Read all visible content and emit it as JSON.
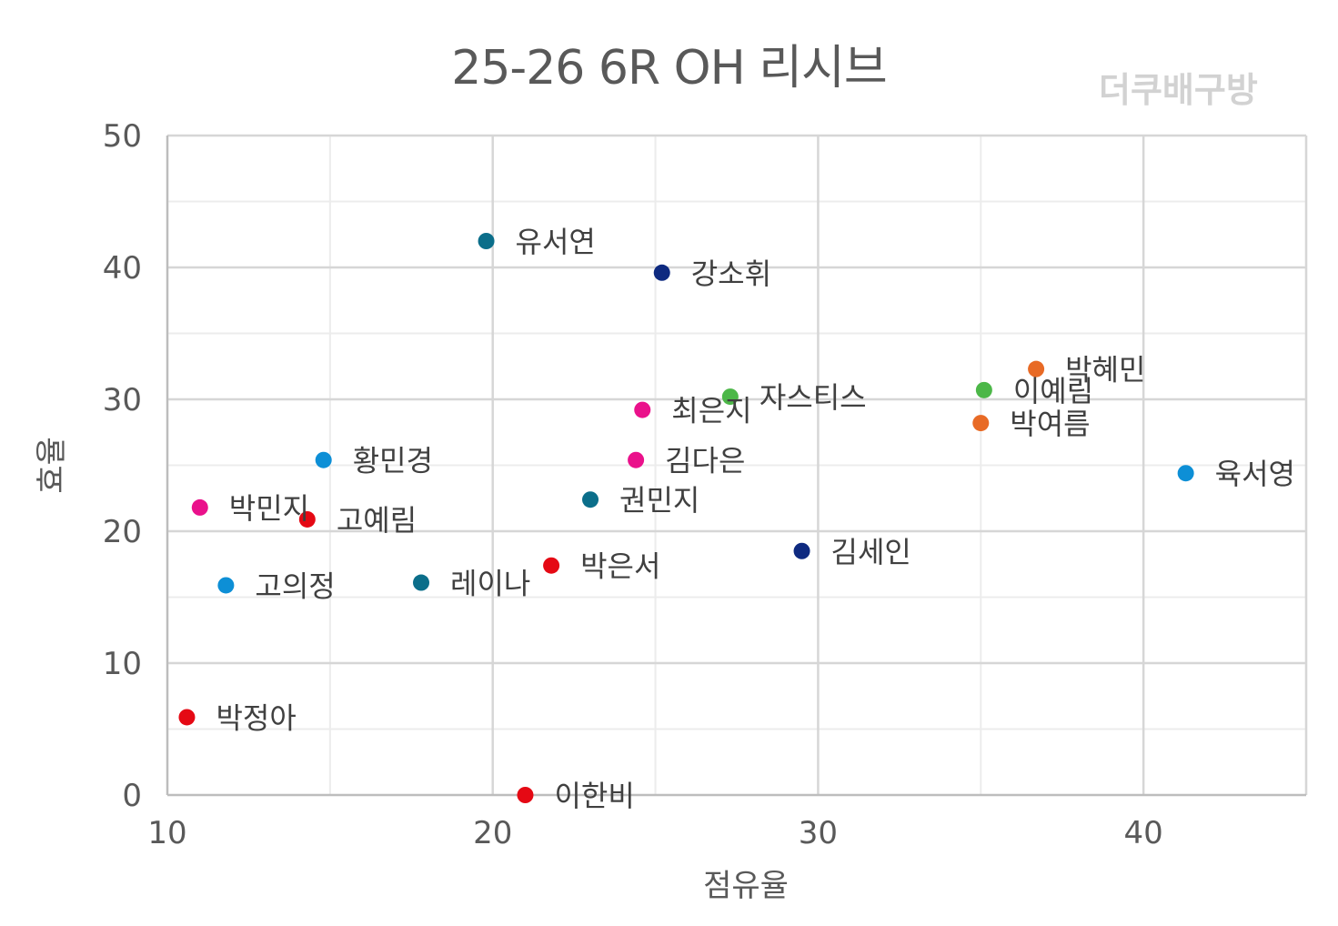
{
  "title": "25-26 6R OH 리시브",
  "watermark": "더쿠배구방",
  "chart_data": {
    "type": "scatter",
    "title": "25-26 6R OH 리시브",
    "xlabel": "점유율",
    "ylabel": "효율",
    "xlim": [
      10,
      45
    ],
    "ylim": [
      0,
      50
    ],
    "xticks": [
      10,
      20,
      30,
      40
    ],
    "yticks": [
      0,
      10,
      20,
      30,
      40,
      50
    ],
    "minor_grid": true,
    "legend": "none",
    "points": [
      {
        "label": "유서연",
        "x": 19.8,
        "y": 42.0,
        "color": "#0b6e8a"
      },
      {
        "label": "강소휘",
        "x": 25.2,
        "y": 39.6,
        "color": "#0e2a80"
      },
      {
        "label": "박혜민",
        "x": 36.7,
        "y": 32.3,
        "color": "#e86a25"
      },
      {
        "label": "이예림",
        "x": 35.1,
        "y": 30.7,
        "color": "#4cb748"
      },
      {
        "label": "자스티스",
        "x": 27.3,
        "y": 30.2,
        "color": "#4cb748"
      },
      {
        "label": "최은지",
        "x": 24.6,
        "y": 29.2,
        "color": "#ea118b"
      },
      {
        "label": "박여름",
        "x": 35.0,
        "y": 28.2,
        "color": "#e86a25"
      },
      {
        "label": "김다은",
        "x": 24.4,
        "y": 25.4,
        "color": "#ea118b"
      },
      {
        "label": "황민경",
        "x": 14.8,
        "y": 25.4,
        "color": "#0d8fd6"
      },
      {
        "label": "육서영",
        "x": 41.3,
        "y": 24.4,
        "color": "#0d8fd6"
      },
      {
        "label": "권민지",
        "x": 23.0,
        "y": 22.4,
        "color": "#0b6e8a"
      },
      {
        "label": "박민지",
        "x": 11.0,
        "y": 21.8,
        "color": "#ea118b"
      },
      {
        "label": "고예림",
        "x": 14.3,
        "y": 20.9,
        "color": "#e50914"
      },
      {
        "label": "김세인",
        "x": 29.5,
        "y": 18.5,
        "color": "#0e2a80"
      },
      {
        "label": "박은서",
        "x": 21.8,
        "y": 17.4,
        "color": "#e50914"
      },
      {
        "label": "고의정",
        "x": 11.8,
        "y": 15.9,
        "color": "#0d8fd6"
      },
      {
        "label": "레이나",
        "x": 17.8,
        "y": 16.1,
        "color": "#0b6e8a"
      },
      {
        "label": "박정아",
        "x": 10.6,
        "y": 5.9,
        "color": "#e50914"
      },
      {
        "label": "이한비",
        "x": 21.0,
        "y": 0.0,
        "color": "#e50914"
      }
    ]
  }
}
